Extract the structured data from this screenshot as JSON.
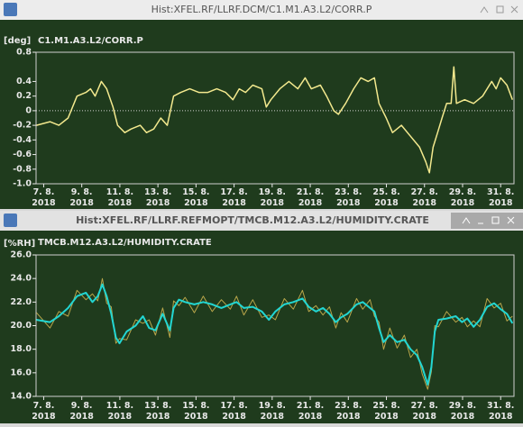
{
  "chart_data": [
    {
      "type": "line",
      "window_title": "Hist:XFEL.RF/LLRF.DCM/C1.M1.A3.L2/CORR.P",
      "unit": "[deg]",
      "title": "C1.M1.A3.L2/CORR.P",
      "zero_line": true,
      "color": "#f3e98e",
      "x": [
        6.62,
        7.33,
        7.8,
        8.28,
        8.75,
        9.22,
        9.46,
        9.7,
        10.03,
        10.31,
        10.64,
        10.88,
        11.26,
        11.59,
        12.07,
        12.4,
        12.78,
        13.15,
        13.49,
        13.82,
        14.2,
        14.67,
        15.15,
        15.62,
        16.09,
        16.56,
        16.94,
        17.27,
        17.6,
        17.98,
        18.46,
        18.69,
        18.93,
        19.4,
        19.88,
        20.35,
        20.73,
        21.06,
        21.53,
        21.86,
        22.24,
        22.48,
        22.86,
        23.28,
        23.66,
        24.04,
        24.37,
        24.61,
        24.99,
        25.32,
        25.79,
        26.27,
        26.74,
        27.07,
        27.26,
        27.45,
        27.69,
        27.92,
        28.16,
        28.4,
        28.54,
        28.68,
        29.11,
        29.58,
        30.05,
        30.53,
        30.76,
        31.0,
        31.33,
        31.62
      ],
      "values": [
        -0.2,
        -0.15,
        -0.2,
        -0.1,
        0.2,
        0.25,
        0.3,
        0.2,
        0.4,
        0.3,
        0.05,
        -0.2,
        -0.3,
        -0.25,
        -0.2,
        -0.3,
        -0.25,
        -0.1,
        -0.2,
        0.2,
        0.25,
        0.3,
        0.25,
        0.25,
        0.3,
        0.25,
        0.15,
        0.3,
        0.25,
        0.35,
        0.3,
        0.05,
        0.15,
        0.3,
        0.4,
        0.3,
        0.45,
        0.3,
        0.35,
        0.2,
        0.0,
        -0.05,
        0.1,
        0.3,
        0.45,
        0.4,
        0.45,
        0.1,
        -0.1,
        -0.3,
        -0.2,
        -0.35,
        -0.5,
        -0.7,
        -0.85,
        -0.5,
        -0.3,
        -0.1,
        0.1,
        0.1,
        0.6,
        0.1,
        0.15,
        0.1,
        0.2,
        0.4,
        0.3,
        0.45,
        0.35,
        0.15
      ],
      "xlim": [
        6.6,
        31.7
      ],
      "xticks": [
        {
          "value": 7,
          "label": [
            "7. 8.",
            "2018"
          ]
        },
        {
          "value": 9,
          "label": [
            "9. 8.",
            "2018"
          ]
        },
        {
          "value": 11,
          "label": [
            "11. 8.",
            "2018"
          ]
        },
        {
          "value": 13,
          "label": [
            "13. 8.",
            "2018"
          ]
        },
        {
          "value": 15,
          "label": [
            "15. 8.",
            "2018"
          ]
        },
        {
          "value": 17,
          "label": [
            "17. 8.",
            "2018"
          ]
        },
        {
          "value": 19,
          "label": [
            "19. 8.",
            "2018"
          ]
        },
        {
          "value": 21,
          "label": [
            "21. 8.",
            "2018"
          ]
        },
        {
          "value": 23,
          "label": [
            "23. 8.",
            "2018"
          ]
        },
        {
          "value": 25,
          "label": [
            "25. 8.",
            "2018"
          ]
        },
        {
          "value": 27,
          "label": [
            "27. 8.",
            "2018"
          ]
        },
        {
          "value": 29,
          "label": [
            "29. 8.",
            "2018"
          ]
        },
        {
          "value": 31,
          "label": [
            "31. 8.",
            "2018"
          ]
        }
      ],
      "ylim": [
        -1,
        0.8
      ],
      "yticks": [
        0.8,
        0.4,
        0.2,
        0,
        -0.2,
        -0.4,
        -0.6,
        -0.8,
        {
          "value": -1,
          "label": "-1.0"
        }
      ]
    },
    {
      "type": "line",
      "window_title": "Hist:XFEL.RF/LLRF.REFMOPT/TMCB.M12.A3.L2/HUMIDITY.CRATE",
      "unit": "[%RH]",
      "title": "TMCB.M12.A3.L2/HUMIDITY.CRATE",
      "x": [
        6.62,
        7.33,
        7.8,
        8.28,
        8.75,
        9.22,
        9.56,
        9.84,
        10.08,
        10.31,
        10.55,
        10.79,
        10.98,
        11.36,
        11.83,
        12.21,
        12.54,
        12.87,
        13.25,
        13.63,
        13.82,
        14.1,
        14.43,
        14.91,
        15.38,
        15.85,
        16.33,
        16.8,
        17.13,
        17.51,
        17.98,
        18.46,
        18.83,
        19.17,
        19.64,
        20.11,
        20.59,
        20.92,
        21.3,
        21.67,
        22.01,
        22.34,
        22.62,
        22.95,
        23.43,
        23.76,
        24.14,
        24.37,
        24.61,
        24.85,
        25.18,
        25.56,
        25.94,
        26.27,
        26.6,
        26.88,
        27.17,
        27.36,
        27.54,
        27.73,
        28.16,
        28.64,
        28.97,
        29.25,
        29.58,
        29.91,
        30.29,
        30.66,
        31.0,
        31.33,
        31.62
      ],
      "series": [
        {
          "color": "#b8a64a",
          "values": [
            21.1,
            19.8,
            21.2,
            20.8,
            23.0,
            22.2,
            22.7,
            22.1,
            24.0,
            21.9,
            21.6,
            18.5,
            18.9,
            18.8,
            20.5,
            20.2,
            20.5,
            19.2,
            21.5,
            19.0,
            22.1,
            21.7,
            22.4,
            21.1,
            22.5,
            21.2,
            22.2,
            21.4,
            22.5,
            20.9,
            22.2,
            20.7,
            20.9,
            20.5,
            22.3,
            21.4,
            23.0,
            21.2,
            21.7,
            20.9,
            21.6,
            19.8,
            21.1,
            20.3,
            22.3,
            21.4,
            22.2,
            20.8,
            20.3,
            18.0,
            19.8,
            18.1,
            19.2,
            17.3,
            18.0,
            15.9,
            14.6,
            16.1,
            20.0,
            19.9,
            21.2,
            20.3,
            20.7,
            19.9,
            20.4,
            19.9,
            22.3,
            21.5,
            21.9,
            20.4,
            20.8
          ]
        },
        {
          "color": "#22d6d2",
          "values": [
            20.5,
            20.3,
            20.8,
            21.5,
            22.5,
            22.8,
            22.0,
            22.5,
            23.5,
            22.5,
            21.0,
            19.0,
            18.5,
            19.5,
            20.0,
            20.8,
            19.8,
            19.6,
            21.0,
            19.6,
            21.5,
            22.2,
            22.0,
            21.8,
            22.0,
            21.8,
            21.5,
            21.8,
            22.0,
            21.5,
            21.6,
            21.2,
            20.5,
            21.2,
            21.8,
            22.0,
            22.3,
            21.6,
            21.2,
            21.5,
            21.0,
            20.3,
            20.7,
            21.0,
            21.8,
            22.0,
            21.5,
            21.2,
            19.8,
            18.6,
            19.2,
            18.6,
            18.8,
            18.0,
            17.5,
            16.5,
            15.0,
            16.5,
            19.5,
            20.5,
            20.6,
            20.8,
            20.3,
            20.6,
            19.9,
            20.5,
            21.6,
            21.9,
            21.4,
            21.0,
            20.2
          ]
        }
      ],
      "xlim": [
        6.6,
        31.7
      ],
      "xticks": [
        {
          "value": 7,
          "label": [
            "7. 8.",
            "2018"
          ]
        },
        {
          "value": 9,
          "label": [
            "9. 8.",
            "2018"
          ]
        },
        {
          "value": 11,
          "label": [
            "11. 8.",
            "2018"
          ]
        },
        {
          "value": 13,
          "label": [
            "13. 8.",
            "2018"
          ]
        },
        {
          "value": 15,
          "label": [
            "15. 8.",
            "2018"
          ]
        },
        {
          "value": 17,
          "label": [
            "17. 8.",
            "2018"
          ]
        },
        {
          "value": 19,
          "label": [
            "19. 8.",
            "2018"
          ]
        },
        {
          "value": 21,
          "label": [
            "21. 8.",
            "2018"
          ]
        },
        {
          "value": 23,
          "label": [
            "23. 8.",
            "2018"
          ]
        },
        {
          "value": 25,
          "label": [
            "25. 8.",
            "2018"
          ]
        },
        {
          "value": 27,
          "label": [
            "27. 8.",
            "2018"
          ]
        },
        {
          "value": 29,
          "label": [
            "29. 8.",
            "2018"
          ]
        },
        {
          "value": 31,
          "label": [
            "31. 8.",
            "2018"
          ]
        }
      ],
      "ylim": [
        14,
        26
      ],
      "yticks": [
        {
          "value": 26,
          "label": "26.0"
        },
        {
          "value": 24,
          "label": "24.0"
        },
        {
          "value": 22,
          "label": "22.0"
        },
        {
          "value": 20,
          "label": "20.0"
        },
        {
          "value": 18,
          "label": "18.0"
        },
        {
          "value": 16,
          "label": "16.0"
        },
        {
          "value": 14,
          "label": "14.0"
        }
      ]
    }
  ]
}
